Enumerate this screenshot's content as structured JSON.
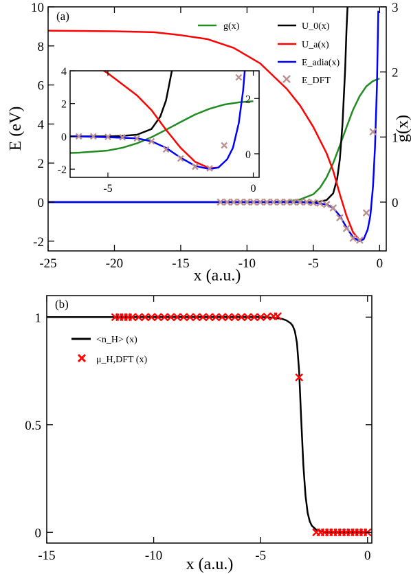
{
  "chart_data": [
    {
      "panel": "(a)",
      "type": "line",
      "xlabel": "x (a.u.)",
      "ylabel": "E (eV)",
      "y2label": "g(x)",
      "xlim": [
        -25,
        0.5
      ],
      "ylim": [
        -2.5,
        10
      ],
      "y2lim": [
        -0.75,
        3
      ],
      "xticks": [
        -25,
        -20,
        -15,
        -10,
        -5,
        0
      ],
      "yticks": [
        -2,
        0,
        2,
        4,
        6,
        8,
        10
      ],
      "y2ticks": [
        0,
        1,
        2,
        3
      ],
      "legend_position": "top-right",
      "series": [
        {
          "name": "g(x)",
          "axis": "right",
          "color": "#228b22",
          "x": [
            -25,
            -9,
            -7,
            -6,
            -5,
            -4.5,
            -4,
            -3.5,
            -3,
            -2.5,
            -2,
            -1.5,
            -1,
            -0.5,
            0
          ],
          "y": [
            0,
            0,
            0.01,
            0.04,
            0.12,
            0.22,
            0.38,
            0.6,
            0.87,
            1.15,
            1.42,
            1.63,
            1.78,
            1.86,
            1.9
          ]
        },
        {
          "name": "U_0(x)",
          "axis": "left",
          "color": "#000000",
          "x": [
            -25,
            -6,
            -5,
            -4.5,
            -4,
            -3.5,
            -3.2,
            -3,
            -2.8,
            -2.6,
            -2.5,
            -2.42
          ],
          "y": [
            0,
            0,
            0,
            0.03,
            0.1,
            0.45,
            1.2,
            2.2,
            4.0,
            6.8,
            8.8,
            10
          ]
        },
        {
          "name": "U_a(x)",
          "axis": "left",
          "color": "#ff0000",
          "x": [
            -25,
            -20,
            -17,
            -15,
            -13,
            -11,
            -9,
            -7,
            -6,
            -5,
            -4,
            -3.5,
            -3,
            -2.5,
            -2,
            -1.5,
            -1.2
          ],
          "y": [
            8.78,
            8.75,
            8.7,
            8.55,
            8.35,
            7.9,
            7.1,
            5.8,
            4.95,
            3.85,
            2.5,
            1.6,
            0.4,
            -0.7,
            -1.55,
            -1.95,
            -1.9
          ]
        },
        {
          "name": "E_adia(x)",
          "axis": "left",
          "color": "#0000ff",
          "x": [
            -25,
            -6,
            -5,
            -4,
            -3.5,
            -3,
            -2.5,
            -2,
            -1.5,
            -1.2,
            -0.9,
            -0.7,
            -0.5,
            -0.35,
            -0.2,
            -0.1
          ],
          "y": [
            0,
            0,
            -0.05,
            -0.12,
            -0.3,
            -0.7,
            -1.3,
            -1.8,
            -2.0,
            -1.9,
            -1.4,
            -0.7,
            0.8,
            2.8,
            6.0,
            9.8
          ]
        },
        {
          "name": "E_DFT",
          "axis": "left",
          "color": "#bc8f8f",
          "marker": "x",
          "x": [
            -12,
            -11.5,
            -11,
            -10.5,
            -10,
            -9.5,
            -9,
            -8.5,
            -8,
            -7.5,
            -7,
            -6.5,
            -6,
            -5.5,
            -5,
            -4.5,
            -4,
            -3.5,
            -3,
            -2.5,
            -2,
            -1.5,
            -1,
            -0.5
          ],
          "y": [
            0,
            0,
            0,
            0,
            0,
            0,
            0,
            0,
            0,
            0,
            0,
            0,
            0,
            0,
            -0.03,
            -0.06,
            -0.12,
            -0.3,
            -0.8,
            -1.35,
            -1.85,
            -1.95,
            -0.55,
            3.6
          ]
        }
      ],
      "inset": {
        "xlim": [
          -6.3,
          0.2
        ],
        "ylim": [
          -2.5,
          4
        ],
        "y2lim": [
          -0.85,
          3
        ],
        "xticks": [
          -5,
          0
        ],
        "yticks": [
          -2,
          0,
          2,
          4
        ],
        "y2ticks": [
          0,
          2
        ]
      }
    },
    {
      "panel": "(b)",
      "type": "line",
      "xlabel": "x (a.u.)",
      "ylabel": "",
      "xlim": [
        -15,
        0.2
      ],
      "ylim": [
        -0.05,
        1.1
      ],
      "xticks": [
        -15,
        -10,
        -5,
        0
      ],
      "yticks": [
        0,
        0.5,
        1
      ],
      "legend_position": "upper-left",
      "series": [
        {
          "name": "<n_H> (x)",
          "color": "#000000",
          "x": [
            -15,
            -5,
            -4.5,
            -4,
            -3.8,
            -3.6,
            -3.5,
            -3.4,
            -3.3,
            -3.2,
            -3.1,
            -3.0,
            -2.9,
            -2.8,
            -2.7,
            -2.6,
            -2.4,
            -2.2,
            -2,
            -1,
            0
          ],
          "y": [
            1,
            1,
            0.998,
            0.992,
            0.985,
            0.972,
            0.96,
            0.935,
            0.88,
            0.75,
            0.52,
            0.31,
            0.17,
            0.09,
            0.05,
            0.03,
            0.012,
            0.005,
            0.002,
            0,
            0
          ]
        },
        {
          "name": "μ_H,DFT (x)",
          "color": "#ff0000",
          "marker": "x",
          "x": [
            -11.8,
            -11.6,
            -11.4,
            -11.2,
            -11,
            -10.7,
            -10.4,
            -10.1,
            -9.8,
            -9.5,
            -9.2,
            -8.9,
            -8.6,
            -8.3,
            -8,
            -7.7,
            -7.4,
            -7.1,
            -6.8,
            -6.5,
            -6.2,
            -5.9,
            -5.6,
            -5.3,
            -5,
            -4.7,
            -4.4,
            -4.2,
            -3.2,
            -2.4,
            -2.2,
            -2,
            -1.8,
            -1.6,
            -1.4,
            -1.2,
            -1,
            -0.8,
            -0.6,
            -0.4,
            -0.2,
            0
          ],
          "y": [
            1,
            1,
            1,
            1,
            1,
            1,
            1,
            1,
            1,
            1,
            1,
            1,
            1,
            1,
            1,
            1,
            1,
            1,
            1,
            1,
            1,
            1,
            1,
            1,
            1,
            1.002,
            1.004,
            1.004,
            0.72,
            0.0,
            0.0,
            0.0,
            0.0,
            0.0,
            0.0,
            0.0,
            0.0,
            0.0,
            0.0,
            0.0,
            0.0,
            0.0
          ]
        }
      ]
    }
  ]
}
